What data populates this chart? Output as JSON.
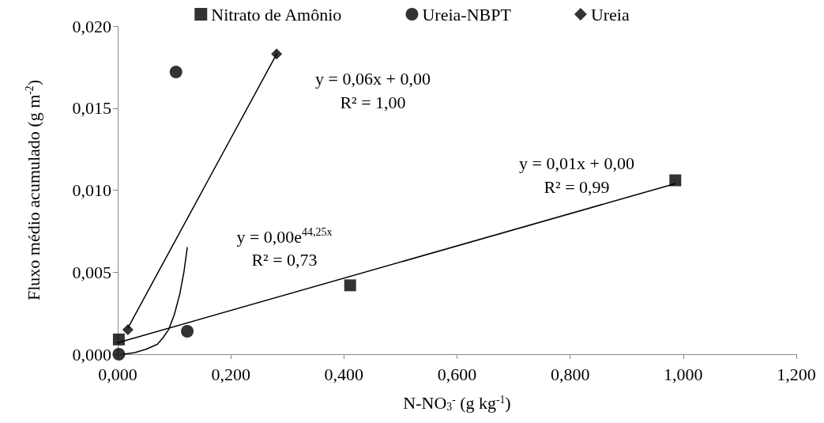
{
  "chart_data": {
    "type": "scatter",
    "xlabel": "N-NO$_{3}$$^{-}$ (g kg$^{-1}$)",
    "ylabel": "Fluxo médio acumulado (g m$^{-2}$)",
    "xlim": [
      0,
      1.2
    ],
    "xticks": [
      {
        "value": 0,
        "label": "0,000"
      },
      {
        "value": 0.2,
        "label": "0,200"
      },
      {
        "value": 0.4,
        "label": "0,400"
      },
      {
        "value": 0.6,
        "label": "0,600"
      },
      {
        "value": 0.8,
        "label": "0,800"
      },
      {
        "value": 1.0,
        "label": "1,000"
      },
      {
        "value": 1.2,
        "label": "1,200"
      }
    ],
    "ylim": [
      0,
      0.02
    ],
    "yticks": [
      {
        "value": 0,
        "label": "0,000"
      },
      {
        "value": 0.005,
        "label": "0,005"
      },
      {
        "value": 0.01,
        "label": "0,010"
      },
      {
        "value": 0.015,
        "label": "0,015"
      },
      {
        "value": 0.02,
        "label": "0,020"
      }
    ],
    "grid": false,
    "legend": "top",
    "series": [
      {
        "name": "Nitrato de Amônio",
        "type": "scatter",
        "marker": "square",
        "color": "#000000",
        "x": [
          0.002,
          0.411,
          0.986
        ],
        "values": [
          0.0009,
          0.0042,
          0.0106
        ]
      },
      {
        "name": "Ureia-NBPT",
        "type": "scatter",
        "marker": "circle",
        "color": "#000000",
        "x": [
          0.002,
          0.103,
          0.123
        ],
        "values": [
          0.0,
          0.0172,
          0.0014
        ]
      },
      {
        "name": "Ureia",
        "type": "scatter",
        "marker": "diamond",
        "color": "#000000",
        "x": [
          0.018,
          0.281
        ],
        "values": [
          0.0015,
          0.0183
        ]
      },
      {
        "type": "line",
        "marker": "none",
        "color": "#000000",
        "x": [
          0.0,
          0.986
        ],
        "values": [
          0.0007,
          0.0104
        ]
      },
      {
        "type": "line",
        "marker": "none",
        "color": "#000000",
        "x": [
          0.018,
          0.281
        ],
        "values": [
          0.0016,
          0.0183
        ]
      },
      {
        "type": "line",
        "marker": "none",
        "color": "#000000",
        "x": [
          0.01,
          0.03,
          0.05,
          0.07,
          0.08,
          0.09,
          0.1,
          0.11,
          0.117,
          0.123
        ],
        "values": [
          0.0,
          0.0001,
          0.0003,
          0.0006,
          0.001,
          0.0015,
          0.0024,
          0.0037,
          0.005,
          0.0065
        ]
      }
    ],
    "annotations": [
      "y = 0,06x + 0,00\nR² = 1,00",
      "y = 0,00e$^{44,25x}$\nR² = 0,73",
      "y = 0,01x + 0,00\nR² = 0,99"
    ]
  }
}
